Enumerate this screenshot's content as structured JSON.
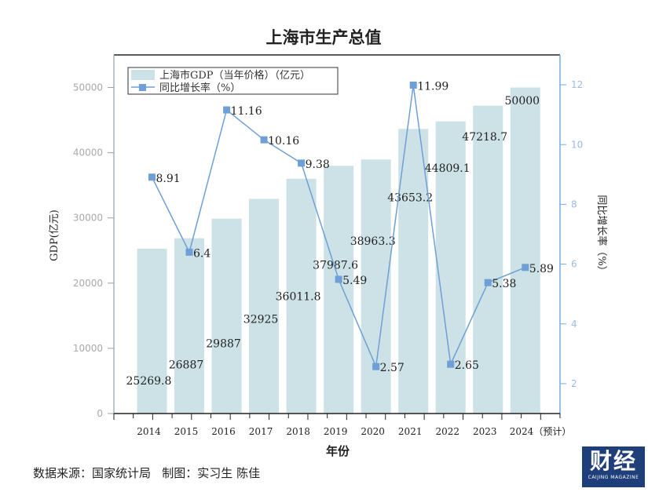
{
  "chart_data": {
    "type": "bar+line",
    "title": "上海市生产总值",
    "xlabel": "年份",
    "ylabel_left": "GDP(亿元)",
    "ylabel_right": "同比增长率（%）",
    "categories": [
      "2014",
      "2015",
      "2016",
      "2017",
      "2018",
      "2019",
      "2020",
      "2021",
      "2022",
      "2023",
      "2024（预计）"
    ],
    "series": [
      {
        "name": "上海市GDP（当年价格）（亿元）",
        "type": "bar",
        "axis": "left",
        "color": "#cce2e6",
        "values": [
          25269.8,
          26887,
          29887,
          32925,
          36011.8,
          37987.6,
          38963.3,
          43653.2,
          44809.1,
          47218.7,
          50000
        ],
        "labels": [
          "25269.8",
          "26887",
          "29887",
          "32925",
          "36011.8",
          "37987.6",
          "38963.3",
          "43653.2",
          "44809.1",
          "47218.7",
          "50000"
        ]
      },
      {
        "name": "同比增长率（%）",
        "type": "line",
        "axis": "right",
        "color": "#6e9fd6",
        "marker": "square",
        "values": [
          8.91,
          6.4,
          11.16,
          10.16,
          9.38,
          5.49,
          2.57,
          11.99,
          2.65,
          5.38,
          5.89
        ],
        "labels": [
          "8.91",
          "6.4",
          "11.16",
          "10.16",
          "9.38",
          "5.49",
          "2.57",
          "11.99",
          "2.65",
          "5.38",
          "5.89"
        ]
      }
    ],
    "ylim_left": [
      0,
      55000
    ],
    "yticks_left": [
      "0",
      "10000",
      "20000",
      "30000",
      "40000",
      "50000"
    ],
    "yticks_left_values": [
      0,
      10000,
      20000,
      30000,
      40000,
      50000
    ],
    "ylim_right": [
      1,
      13
    ],
    "yticks_right": [
      "2",
      "4",
      "6",
      "8",
      "10",
      "12"
    ],
    "yticks_right_values": [
      2,
      4,
      6,
      8,
      10,
      12
    ],
    "grid": false,
    "legend_position": "top-left"
  },
  "footer": {
    "source": "数据来源：国家统计局   制图：实习生 陈佳"
  },
  "logo": {
    "main": "财经",
    "sub": "CAIJING MAGAZINE"
  }
}
